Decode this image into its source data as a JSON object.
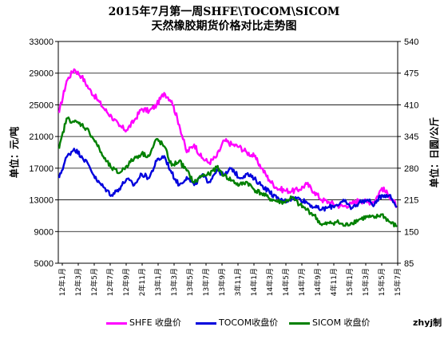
{
  "chart_data": {
    "type": "line",
    "title": "2015年7月第一周SHFE\\TOCOM\\SICOM",
    "subtitle": "天然橡胶期货价格对比走势图",
    "ylabel_left": "单位：元/吨",
    "ylabel_right": "单位：日圆/公斤",
    "ylim_left": [
      5000,
      33000
    ],
    "yticks_left": [
      5000,
      9000,
      13000,
      17000,
      21000,
      25000,
      29000,
      33000
    ],
    "ylim_right": [
      85,
      540
    ],
    "yticks_right": [
      85,
      150,
      215,
      280,
      345,
      410,
      475,
      540
    ],
    "x_tick_labels": [
      "12年1月",
      "12年3月",
      "12年5月",
      "12年7月",
      "12年9月",
      "2年11月",
      "13年1月",
      "13年3月",
      "13年5月",
      "13年7月",
      "13年9月",
      "3年11月",
      "14年1月",
      "14年3月",
      "14年5月",
      "14年7月",
      "14年9月",
      "4年11月",
      "15年1月",
      "15年3月",
      "15年5月",
      "15年7月"
    ],
    "grid": true,
    "legend_placement": "bottom",
    "series": [
      {
        "name": "SHFE 收盘价",
        "axis": "left",
        "color": "#ff00ff",
        "values": [
          24000,
          28000,
          29500,
          28600,
          27000,
          25800,
          24500,
          23500,
          22300,
          21800,
          23000,
          24500,
          24200,
          25000,
          26500,
          25500,
          22500,
          19000,
          20000,
          18300,
          17700,
          18500,
          20500,
          20000,
          19700,
          19000,
          18500,
          17000,
          15500,
          14500,
          14200,
          14100,
          14300,
          15000,
          14000,
          13000,
          12700,
          12300,
          12200,
          12500,
          13000,
          12700,
          12800,
          14500,
          13500,
          12200
        ]
      },
      {
        "name": "TOCOM收盘价",
        "axis": "right",
        "color": "#0000dd",
        "values": [
          260,
          303,
          320,
          305,
          285,
          255,
          240,
          225,
          238,
          258,
          245,
          268,
          260,
          295,
          305,
          270,
          245,
          262,
          245,
          265,
          252,
          277,
          265,
          280,
          260,
          268,
          258,
          245,
          232,
          218,
          212,
          218,
          218,
          210,
          200,
          195,
          200,
          205,
          212,
          198,
          210,
          215,
          205,
          225,
          225,
          200
        ]
      },
      {
        "name": "SICOM 收盘价",
        "axis": "right",
        "color": "#008000",
        "values": [
          320,
          382,
          375,
          370,
          355,
          330,
          300,
          280,
          270,
          285,
          300,
          310,
          305,
          340,
          325,
          285,
          295,
          275,
          250,
          265,
          267,
          282,
          265,
          255,
          245,
          252,
          236,
          228,
          218,
          212,
          210,
          220,
          205,
          195,
          183,
          163,
          167,
          170,
          162,
          168,
          175,
          180,
          178,
          185,
          170,
          160
        ]
      }
    ]
  },
  "credit": "zhyj制"
}
